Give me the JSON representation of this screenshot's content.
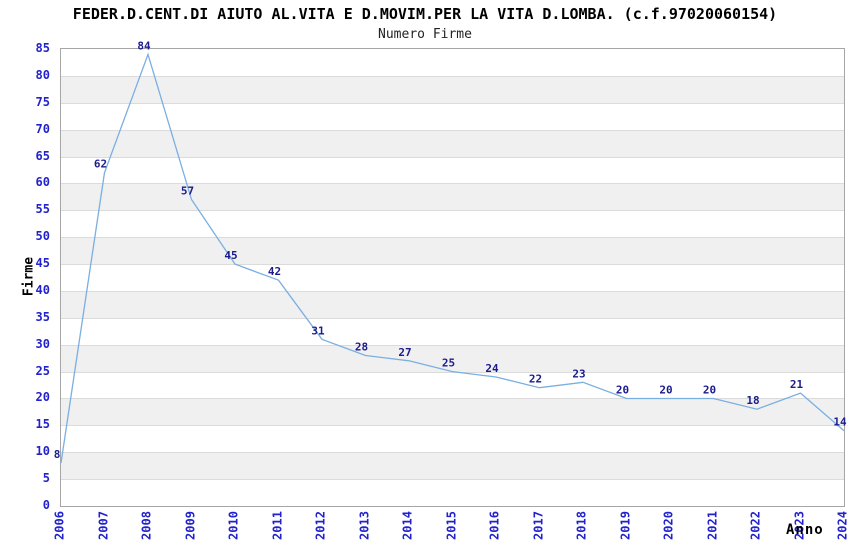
{
  "chart_data": {
    "type": "line",
    "title": "FEDER.D.CENT.DI AIUTO AL.VITA E D.MOVIM.PER LA VITA D.LOMBA. (c.f.97020060154)",
    "subtitle": "Numero Firme",
    "xlabel": "Anno",
    "ylabel": "Firme",
    "categories": [
      "2006",
      "2007",
      "2008",
      "2009",
      "2010",
      "2011",
      "2012",
      "2013",
      "2014",
      "2015",
      "2016",
      "2017",
      "2018",
      "2019",
      "2020",
      "2021",
      "2022",
      "2023",
      "2024"
    ],
    "values": [
      8,
      62,
      84,
      57,
      45,
      42,
      31,
      28,
      27,
      25,
      24,
      22,
      23,
      20,
      20,
      20,
      18,
      21,
      14
    ],
    "ylim": [
      0,
      85
    ],
    "ytick_step": 5,
    "grid": "horizontal-bands-alternating",
    "legend": "none",
    "data_labels_visible": true,
    "colors": {
      "line": "#7aafe2",
      "tick_label": "#2222cc",
      "data_label": "#1b1b8e",
      "band_gray": "#f0f0f0",
      "band_white": "#ffffff",
      "gridline": "#dbdbdb",
      "plot_border": "#a6a6a6",
      "title_text": "#000000",
      "subtitle_text": "#222222"
    }
  }
}
